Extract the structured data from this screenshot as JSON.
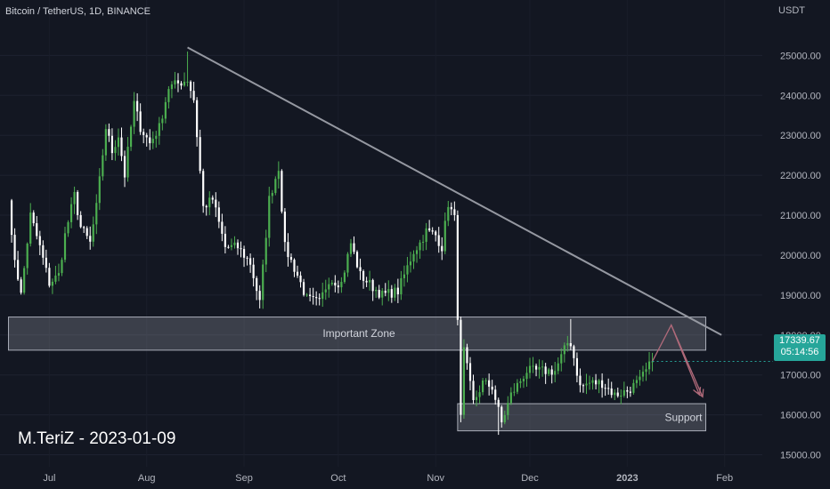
{
  "header": {
    "symbol": "Bitcoin / TetherUS, 1D, BINANCE"
  },
  "axis_unit": "USDT",
  "watermark": "M.TeriZ - 2023-01-09",
  "last_price": {
    "value": "17339.67",
    "countdown": "05:14:56"
  },
  "colors": {
    "background": "#131722",
    "up": "#4caf50",
    "down": "#ffffff",
    "trendline": "#9598a1",
    "zone_fill": "rgba(180,184,196,0.25)"
  },
  "chart_data": {
    "type": "candlestick",
    "title": "Bitcoin / TetherUS, 1D, BINANCE",
    "y_unit": "USDT",
    "ylim": [
      14700,
      26300
    ],
    "y_ticks": [
      15000,
      16000,
      17000,
      18000,
      19000,
      20000,
      21000,
      22000,
      23000,
      24000,
      25000
    ],
    "y_tick_labels": [
      "15000.00",
      "16000.00",
      "17000.00",
      "18000.00",
      "19000.00",
      "20000.00",
      "21000.00",
      "22000.00",
      "23000.00",
      "24000.00",
      "25000.00"
    ],
    "x_ticks": [
      "Jul",
      "Aug",
      "Sep",
      "Oct",
      "Nov",
      "Dec",
      "2023",
      "Feb"
    ],
    "x_range": [
      "2022-06-17",
      "2023-02-13"
    ],
    "x_tick_dates": [
      "2022-07-01",
      "2022-08-01",
      "2022-09-01",
      "2022-10-01",
      "2022-11-01",
      "2022-12-01",
      "2023-01-01",
      "2023-02-01"
    ],
    "close_path": [
      [
        "2022-06-18",
        21500
      ],
      [
        "2022-06-19",
        20400
      ],
      [
        "2022-06-22",
        19000
      ],
      [
        "2022-06-25",
        21000
      ],
      [
        "2022-06-28",
        20200
      ],
      [
        "2022-07-01",
        19300
      ],
      [
        "2022-07-04",
        19500
      ],
      [
        "2022-07-06",
        20500
      ],
      [
        "2022-07-09",
        21500
      ],
      [
        "2022-07-11",
        20700
      ],
      [
        "2022-07-14",
        20300
      ],
      [
        "2022-07-16",
        21200
      ],
      [
        "2022-07-19",
        23200
      ],
      [
        "2022-07-21",
        22600
      ],
      [
        "2022-07-23",
        23000
      ],
      [
        "2022-07-25",
        22000
      ],
      [
        "2022-07-28",
        23800
      ],
      [
        "2022-07-30",
        23200
      ],
      [
        "2022-08-02",
        22800
      ],
      [
        "2022-08-05",
        23200
      ],
      [
        "2022-08-08",
        24200
      ],
      [
        "2022-08-11",
        24300
      ],
      [
        "2022-08-14",
        24400
      ],
      [
        "2022-08-16",
        23900
      ],
      [
        "2022-08-19",
        21200
      ],
      [
        "2022-08-22",
        21400
      ],
      [
        "2022-08-26",
        20200
      ],
      [
        "2022-08-30",
        20200
      ],
      [
        "2022-09-03",
        19800
      ],
      [
        "2022-09-06",
        18800
      ],
      [
        "2022-09-09",
        21400
      ],
      [
        "2022-09-12",
        22200
      ],
      [
        "2022-09-14",
        20200
      ],
      [
        "2022-09-18",
        19500
      ],
      [
        "2022-09-21",
        18900
      ],
      [
        "2022-09-25",
        18800
      ],
      [
        "2022-09-28",
        19400
      ],
      [
        "2022-10-02",
        19300
      ],
      [
        "2022-10-05",
        20300
      ],
      [
        "2022-10-08",
        19500
      ],
      [
        "2022-10-12",
        19200
      ],
      [
        "2022-10-15",
        19000
      ],
      [
        "2022-10-20",
        19100
      ],
      [
        "2022-10-25",
        20100
      ],
      [
        "2022-10-27",
        20300
      ],
      [
        "2022-10-29",
        20600
      ],
      [
        "2022-11-01",
        20500
      ],
      [
        "2022-11-03",
        20200
      ],
      [
        "2022-11-05",
        21300
      ],
      [
        "2022-11-07",
        20900
      ],
      [
        "2022-11-08",
        18500
      ],
      [
        "2022-11-09",
        15900
      ],
      [
        "2022-11-10",
        17600
      ],
      [
        "2022-11-13",
        16300
      ],
      [
        "2022-11-16",
        16800
      ],
      [
        "2022-11-19",
        16700
      ],
      [
        "2022-11-22",
        15800
      ],
      [
        "2022-11-25",
        16500
      ],
      [
        "2022-11-30",
        17100
      ],
      [
        "2022-12-04",
        17100
      ],
      [
        "2022-12-09",
        17100
      ],
      [
        "2022-12-13",
        17800
      ],
      [
        "2022-12-14",
        17800
      ],
      [
        "2022-12-17",
        16700
      ],
      [
        "2022-12-20",
        16800
      ],
      [
        "2022-12-24",
        16800
      ],
      [
        "2022-12-28",
        16500
      ],
      [
        "2023-01-01",
        16600
      ],
      [
        "2023-01-05",
        16850
      ],
      [
        "2023-01-09",
        17340
      ]
    ],
    "extremes": [
      [
        "2022-06-18",
        17600
      ],
      [
        "2022-08-14",
        25100
      ],
      [
        "2022-11-21",
        15500
      ],
      [
        "2022-12-14",
        18400
      ]
    ],
    "trendline": [
      [
        "2022-08-14",
        25200
      ],
      [
        "2023-01-31",
        18000
      ]
    ],
    "zones": [
      {
        "label": "Important Zone",
        "x": [
          "2022-06-18",
          "2023-01-26"
        ],
        "y": [
          17620,
          18450
        ]
      },
      {
        "label": "Support",
        "x": [
          "2022-11-08",
          "2023-01-26"
        ],
        "y": [
          15600,
          16280
        ]
      }
    ],
    "projection": [
      [
        "2023-01-09",
        17340
      ],
      [
        "2023-01-15",
        18250
      ],
      [
        "2023-01-24",
        16500
      ]
    ],
    "projection_alt": [
      [
        "2023-01-15",
        18250
      ],
      [
        "2023-01-25",
        16450
      ]
    ]
  }
}
